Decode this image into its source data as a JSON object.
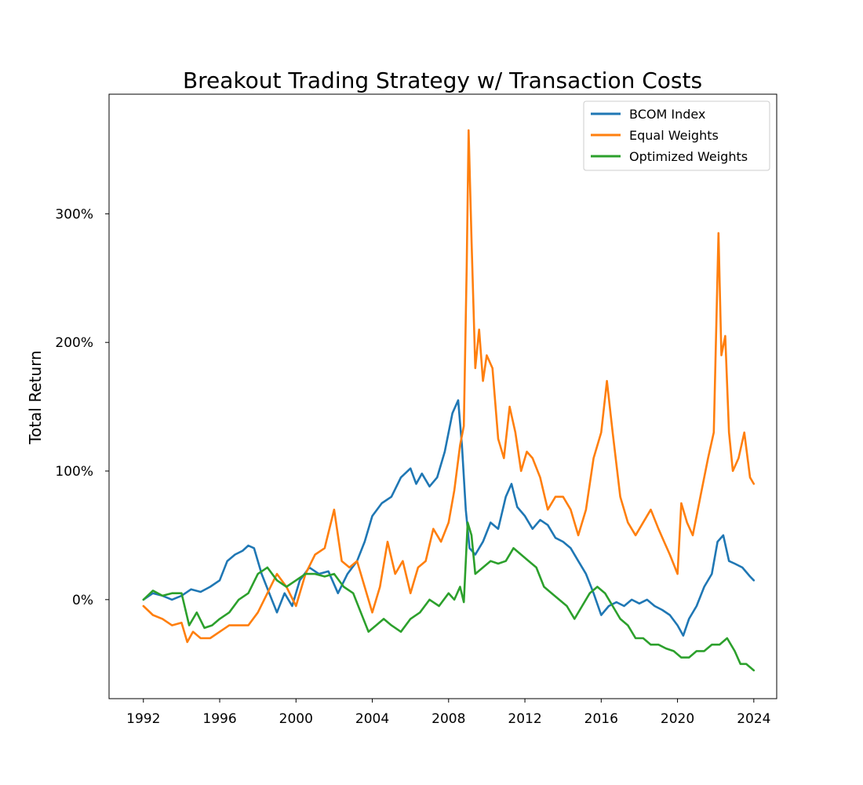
{
  "chart_data": {
    "type": "line",
    "title": "Breakout Trading Strategy w/ Transaction Costs",
    "xlabel": "",
    "ylabel": "Total Return",
    "x_ticks": [
      "1992",
      "1996",
      "2000",
      "2004",
      "2008",
      "2012",
      "2016",
      "2020",
      "2024"
    ],
    "y_ticks": [
      "0%",
      "100%",
      "200%",
      "300%"
    ],
    "xlim": [
      1990.2,
      2025.2
    ],
    "ylim": [
      -0.77,
      3.93
    ],
    "grid": false,
    "legend_position": "top-right",
    "series": [
      {
        "name": "BCOM Index",
        "color": "#1f77b4",
        "x": [
          1992.0,
          1992.5,
          1993.0,
          1993.5,
          1994.0,
          1994.5,
          1995.0,
          1995.5,
          1996.0,
          1996.4,
          1996.8,
          1997.2,
          1997.5,
          1997.8,
          1998.2,
          1998.6,
          1999.0,
          1999.4,
          1999.8,
          2000.2,
          2000.7,
          2001.2,
          2001.7,
          2002.2,
          2002.7,
          2003.2,
          2003.6,
          2004.0,
          2004.5,
          2005.0,
          2005.5,
          2006.0,
          2006.3,
          2006.6,
          2007.0,
          2007.4,
          2007.8,
          2008.2,
          2008.5,
          2008.7,
          2008.9,
          2009.1,
          2009.4,
          2009.8,
          2010.2,
          2010.6,
          2011.0,
          2011.3,
          2011.6,
          2012.0,
          2012.4,
          2012.8,
          2013.2,
          2013.6,
          2014.0,
          2014.4,
          2014.8,
          2015.2,
          2015.6,
          2016.0,
          2016.4,
          2016.8,
          2017.2,
          2017.6,
          2018.0,
          2018.4,
          2018.8,
          2019.2,
          2019.6,
          2020.0,
          2020.3,
          2020.6,
          2021.0,
          2021.4,
          2021.8,
          2022.1,
          2022.4,
          2022.7,
          2023.0,
          2023.4,
          2023.8,
          2024.0
        ],
        "y": [
          0.0,
          0.05,
          0.03,
          0.0,
          0.03,
          0.08,
          0.06,
          0.1,
          0.15,
          0.3,
          0.35,
          0.38,
          0.42,
          0.4,
          0.2,
          0.05,
          -0.1,
          0.05,
          -0.05,
          0.15,
          0.25,
          0.2,
          0.22,
          0.05,
          0.2,
          0.3,
          0.45,
          0.65,
          0.75,
          0.8,
          0.95,
          1.02,
          0.9,
          0.98,
          0.88,
          0.95,
          1.15,
          1.45,
          1.55,
          1.2,
          0.7,
          0.4,
          0.35,
          0.45,
          0.6,
          0.55,
          0.8,
          0.9,
          0.72,
          0.65,
          0.55,
          0.62,
          0.58,
          0.48,
          0.45,
          0.4,
          0.3,
          0.2,
          0.05,
          -0.12,
          -0.05,
          -0.02,
          -0.05,
          0.0,
          -0.03,
          0.0,
          -0.05,
          -0.08,
          -0.12,
          -0.2,
          -0.28,
          -0.15,
          -0.05,
          0.1,
          0.2,
          0.45,
          0.5,
          0.3,
          0.28,
          0.25,
          0.18,
          0.15
        ]
      },
      {
        "name": "Equal Weights",
        "color": "#ff7f0e",
        "x": [
          1992.0,
          1992.5,
          1993.0,
          1993.5,
          1994.0,
          1994.3,
          1994.6,
          1995.0,
          1995.5,
          1996.0,
          1996.5,
          1997.0,
          1997.5,
          1998.0,
          1998.5,
          1999.0,
          1999.5,
          2000.0,
          2000.5,
          2001.0,
          2001.5,
          2002.0,
          2002.4,
          2002.8,
          2003.2,
          2003.6,
          2004.0,
          2004.4,
          2004.8,
          2005.2,
          2005.6,
          2006.0,
          2006.4,
          2006.8,
          2007.2,
          2007.6,
          2008.0,
          2008.3,
          2008.6,
          2008.8,
          2008.95,
          2009.05,
          2009.2,
          2009.4,
          2009.6,
          2009.8,
          2010.0,
          2010.3,
          2010.6,
          2010.9,
          2011.2,
          2011.5,
          2011.8,
          2012.1,
          2012.4,
          2012.8,
          2013.2,
          2013.6,
          2014.0,
          2014.4,
          2014.8,
          2015.2,
          2015.6,
          2016.0,
          2016.3,
          2016.6,
          2017.0,
          2017.4,
          2017.8,
          2018.2,
          2018.6,
          2019.0,
          2019.3,
          2019.6,
          2020.0,
          2020.2,
          2020.5,
          2020.8,
          2021.2,
          2021.6,
          2021.9,
          2022.15,
          2022.3,
          2022.5,
          2022.7,
          2022.9,
          2023.2,
          2023.5,
          2023.8,
          2024.0
        ],
        "y": [
          -0.05,
          -0.12,
          -0.15,
          -0.2,
          -0.18,
          -0.33,
          -0.25,
          -0.3,
          -0.3,
          -0.25,
          -0.2,
          -0.2,
          -0.2,
          -0.1,
          0.05,
          0.2,
          0.1,
          -0.05,
          0.2,
          0.35,
          0.4,
          0.7,
          0.3,
          0.25,
          0.3,
          0.1,
          -0.1,
          0.1,
          0.45,
          0.2,
          0.3,
          0.05,
          0.25,
          0.3,
          0.55,
          0.45,
          0.6,
          0.85,
          1.2,
          1.35,
          2.6,
          3.65,
          2.8,
          1.8,
          2.1,
          1.7,
          1.9,
          1.8,
          1.25,
          1.1,
          1.5,
          1.3,
          1.0,
          1.15,
          1.1,
          0.95,
          0.7,
          0.8,
          0.8,
          0.7,
          0.5,
          0.7,
          1.1,
          1.3,
          1.7,
          1.3,
          0.8,
          0.6,
          0.5,
          0.6,
          0.7,
          0.55,
          0.45,
          0.35,
          0.2,
          0.75,
          0.6,
          0.5,
          0.8,
          1.1,
          1.3,
          2.85,
          1.9,
          2.05,
          1.3,
          1.0,
          1.1,
          1.3,
          0.95,
          0.9
        ]
      },
      {
        "name": "Optimized Weights",
        "color": "#2ca02c",
        "x": [
          1992.0,
          1992.5,
          1993.0,
          1993.5,
          1994.0,
          1994.4,
          1994.8,
          1995.2,
          1995.6,
          1996.0,
          1996.5,
          1997.0,
          1997.5,
          1998.0,
          1998.5,
          1999.0,
          1999.5,
          2000.0,
          2000.5,
          2001.0,
          2001.5,
          2002.0,
          2002.5,
          2003.0,
          2003.4,
          2003.8,
          2004.2,
          2004.6,
          2005.0,
          2005.5,
          2006.0,
          2006.5,
          2007.0,
          2007.5,
          2008.0,
          2008.3,
          2008.6,
          2008.8,
          2009.0,
          2009.2,
          2009.4,
          2009.8,
          2010.2,
          2010.6,
          2011.0,
          2011.4,
          2011.8,
          2012.2,
          2012.6,
          2013.0,
          2013.4,
          2013.8,
          2014.2,
          2014.6,
          2015.0,
          2015.4,
          2015.8,
          2016.2,
          2016.6,
          2017.0,
          2017.4,
          2017.8,
          2018.2,
          2018.6,
          2019.0,
          2019.4,
          2019.8,
          2020.2,
          2020.6,
          2021.0,
          2021.4,
          2021.8,
          2022.2,
          2022.6,
          2023.0,
          2023.3,
          2023.6,
          2024.0
        ],
        "y": [
          0.0,
          0.07,
          0.03,
          0.05,
          0.05,
          -0.2,
          -0.1,
          -0.22,
          -0.2,
          -0.15,
          -0.1,
          0.0,
          0.05,
          0.2,
          0.25,
          0.15,
          0.1,
          0.15,
          0.2,
          0.2,
          0.18,
          0.2,
          0.1,
          0.05,
          -0.1,
          -0.25,
          -0.2,
          -0.15,
          -0.2,
          -0.25,
          -0.15,
          -0.1,
          0.0,
          -0.05,
          0.05,
          0.0,
          0.1,
          -0.02,
          0.6,
          0.5,
          0.2,
          0.25,
          0.3,
          0.28,
          0.3,
          0.4,
          0.35,
          0.3,
          0.25,
          0.1,
          0.05,
          0.0,
          -0.05,
          -0.15,
          -0.05,
          0.05,
          0.1,
          0.05,
          -0.05,
          -0.15,
          -0.2,
          -0.3,
          -0.3,
          -0.35,
          -0.35,
          -0.38,
          -0.4,
          -0.45,
          -0.45,
          -0.4,
          -0.4,
          -0.35,
          -0.35,
          -0.3,
          -0.4,
          -0.5,
          -0.5,
          -0.55
        ]
      }
    ]
  }
}
